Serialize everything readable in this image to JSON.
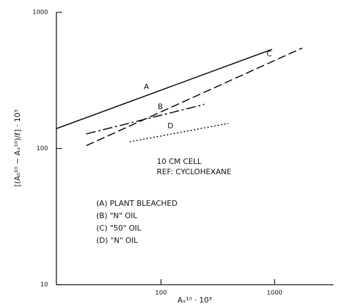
{
  "chart_data": {
    "type": "line",
    "xlabel": "Aₓ¹⁰ · 10³",
    "ylabel": "[(A₀¹⁰ − Aₓ¹⁰)/ℓ] · 10³",
    "xscale": "log",
    "yscale": "log",
    "xlim": [
      12,
      3300
    ],
    "ylim": [
      10,
      1000
    ],
    "xticks": [
      100,
      1000
    ],
    "yticks": [
      10,
      100,
      1000
    ],
    "series": [
      {
        "name": "A",
        "color": "#000000",
        "dash": "solid",
        "x": [
          12,
          950
        ],
        "values": [
          140,
          535
        ]
      },
      {
        "name": "B",
        "color": "#000000",
        "dash": "dashdot",
        "x": [
          22,
          241
        ],
        "values": [
          128,
          211
        ]
      },
      {
        "name": "C",
        "color": "#000000",
        "dash": "dashed",
        "x": [
          22,
          1750
        ],
        "values": [
          105,
          547
        ]
      },
      {
        "name": "D",
        "color": "#000000",
        "dash": "dotted",
        "x": [
          53,
          393
        ],
        "values": [
          112,
          153
        ]
      }
    ],
    "annotations": [
      "10 CM CELL",
      "REF: CYCLOHEXANE"
    ],
    "legend_text": [
      "(A) PLANT BLEACHED",
      "(B) \"N\" OIL",
      "(C) \"50\" OIL",
      "(D) \"N\" OIL"
    ]
  }
}
